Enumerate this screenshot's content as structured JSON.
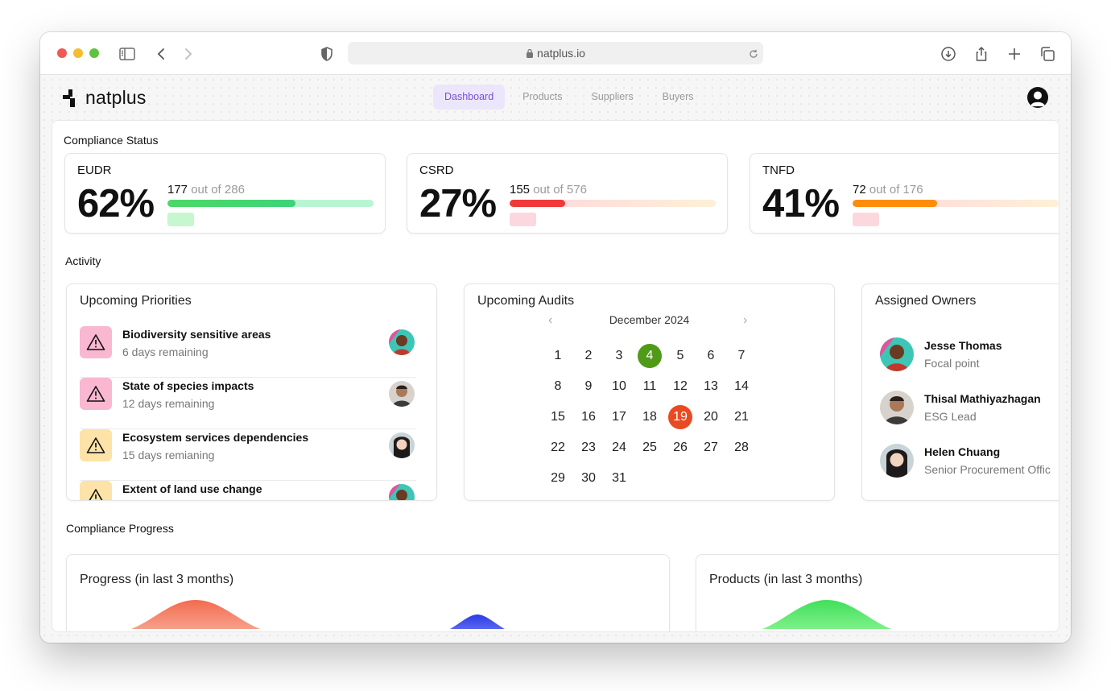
{
  "browser": {
    "url": "natplus.io",
    "traffic_lights": {
      "close": "#ee5a52",
      "minimize": "#f5bd2f",
      "zoom": "#5fc23f"
    }
  },
  "app": {
    "logo": "natplus",
    "nav": [
      {
        "label": "Dashboard",
        "active": true
      },
      {
        "label": "Products",
        "active": false
      },
      {
        "label": "Suppliers",
        "active": false
      },
      {
        "label": "Buyers",
        "active": false
      }
    ]
  },
  "compliance_status": {
    "title": "Compliance Status",
    "items": [
      {
        "name": "EUDR",
        "percent": "62%",
        "done": "177",
        "total_text": " out of 286",
        "progress": 0.62,
        "fill_color": "#4cd964",
        "track_color": "#b9f5d3",
        "chip_color": "#c6f7cf"
      },
      {
        "name": "CSRD",
        "percent": "27%",
        "done": "155",
        "total_text": " out of 576",
        "progress": 0.27,
        "fill_color": "#f03a3a",
        "track_color": "#fde0e4",
        "chip_color": "#fdd7e0"
      },
      {
        "name": "TNFD",
        "percent": "41%",
        "done": "72",
        "total_text": " out of 176",
        "progress": 0.41,
        "fill_color": "#ff8c0a",
        "track_color": "#fde3dc",
        "chip_color": "#fdd7de"
      }
    ]
  },
  "activity": {
    "title": "Activity",
    "priorities": {
      "title": "Upcoming Priorities",
      "items": [
        {
          "title": "Biodiversity sensitive areas",
          "sub": "6 days remaining",
          "icon_bg": "#f9b7d0"
        },
        {
          "title": "State of species impacts",
          "sub": "12 days remaining",
          "icon_bg": "#f9b7d0"
        },
        {
          "title": "Ecosystem services dependencies",
          "sub": "15 days remianing",
          "icon_bg": "#fde3a7"
        },
        {
          "title": "Extent of land use change",
          "sub": "",
          "icon_bg": "#fde3a7"
        }
      ]
    },
    "audits": {
      "title": "Upcoming Audits",
      "month": "December 2024",
      "days": [
        "1",
        "2",
        "3",
        "4",
        "5",
        "6",
        "7",
        "8",
        "9",
        "10",
        "11",
        "12",
        "13",
        "14",
        "15",
        "16",
        "17",
        "18",
        "19",
        "20",
        "21",
        "22",
        "23",
        "24",
        "25",
        "26",
        "27",
        "28",
        "29",
        "30",
        "31"
      ],
      "highlight_green": "4",
      "highlight_red": "19",
      "green_color": "#4f9a16",
      "red_color": "#ea4a21"
    },
    "owners": {
      "title": "Assigned Owners",
      "items": [
        {
          "name": "Jesse Thomas",
          "role": "Focal point"
        },
        {
          "name": "Thisal Mathiyazhagan",
          "role": "ESG Lead"
        },
        {
          "name": "Helen Chuang",
          "role": "Senior Procurement Offic"
        }
      ]
    }
  },
  "compliance_progress": {
    "title": "Compliance Progress",
    "progress_card_title": "Progress (in last 3 months)",
    "products_card_title": "Products (in last 3 months)"
  }
}
